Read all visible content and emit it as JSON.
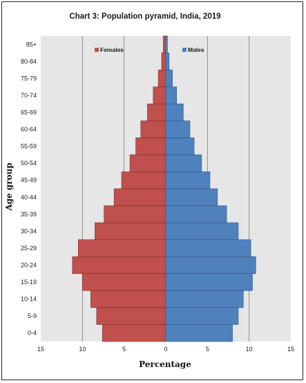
{
  "chart_data": {
    "type": "bar",
    "orientation": "horizontal",
    "subtype": "population-pyramid",
    "title": "Chart 3: Population pyramid, India, 2019",
    "xlabel": "Percentage",
    "ylabel": "Age group",
    "xlim": [
      -15,
      15
    ],
    "x_ticks": [
      -15,
      -10,
      -5,
      0,
      5,
      10,
      15
    ],
    "x_tick_labels": [
      "15",
      "10",
      "5",
      "0",
      "5",
      "10",
      "15"
    ],
    "grid": "vertical",
    "legend_position": "top",
    "categories": [
      "0-4",
      "5-9",
      "10-14",
      "15-19",
      "20-24",
      "25-29",
      "30-34",
      "35-39",
      "40-44",
      "45-49",
      "50-54",
      "55-59",
      "60-64",
      "65-69",
      "70-74",
      "75-79",
      "80-84",
      "85+"
    ],
    "series": [
      {
        "name": "Females",
        "color": "#c0504d",
        "values": [
          7.6,
          8.3,
          9.0,
          10.0,
          11.2,
          10.5,
          8.5,
          7.4,
          6.2,
          5.3,
          4.3,
          3.6,
          3.0,
          2.2,
          1.5,
          0.9,
          0.5,
          0.3
        ]
      },
      {
        "name": "Males",
        "color": "#4f81bd",
        "values": [
          8.0,
          8.7,
          9.3,
          10.4,
          10.8,
          10.2,
          8.7,
          7.3,
          6.2,
          5.3,
          4.3,
          3.4,
          2.9,
          2.1,
          1.3,
          0.8,
          0.4,
          0.2
        ]
      }
    ]
  }
}
